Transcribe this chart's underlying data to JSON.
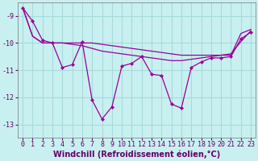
{
  "background_color": "#c8f0f0",
  "grid_color": "#a8dada",
  "line_color": "#990099",
  "marker_color": "#990099",
  "xlabel": "Windchill (Refroidissement éolien,°C)",
  "xlabel_fontsize": 7,
  "tick_fontsize": 6,
  "xlim": [
    -0.5,
    23.5
  ],
  "ylim": [
    -13.5,
    -8.5
  ],
  "yticks": [
    -13,
    -12,
    -11,
    -10,
    -9
  ],
  "xticks": [
    0,
    1,
    2,
    3,
    4,
    5,
    6,
    7,
    8,
    9,
    10,
    11,
    12,
    13,
    14,
    15,
    16,
    17,
    18,
    19,
    20,
    21,
    22,
    23
  ],
  "main_line": [
    -8.7,
    -9.2,
    -9.9,
    -10.0,
    -10.9,
    -10.8,
    -9.95,
    -12.1,
    -12.8,
    -12.35,
    -10.85,
    -10.75,
    -10.5,
    -11.15,
    -11.2,
    -12.25,
    -12.4,
    -10.9,
    -10.7,
    -10.55,
    -10.55,
    -10.5,
    -9.85,
    -9.6
  ],
  "line_upper": [
    -8.7,
    -9.75,
    -10.0,
    -10.0,
    -10.0,
    -10.0,
    -10.0,
    -10.0,
    -10.05,
    -10.1,
    -10.15,
    -10.2,
    -10.25,
    -10.3,
    -10.35,
    -10.4,
    -10.45,
    -10.45,
    -10.45,
    -10.45,
    -10.45,
    -10.45,
    -9.65,
    -9.5
  ],
  "line_lower": [
    -8.7,
    -9.75,
    -10.0,
    -10.0,
    -10.0,
    -10.05,
    -10.1,
    -10.2,
    -10.3,
    -10.35,
    -10.4,
    -10.45,
    -10.5,
    -10.55,
    -10.6,
    -10.65,
    -10.65,
    -10.6,
    -10.55,
    -10.5,
    -10.45,
    -10.4,
    -9.95,
    -9.55
  ]
}
